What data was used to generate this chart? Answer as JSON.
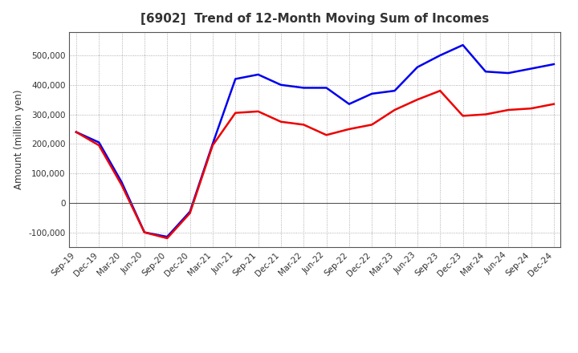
{
  "title": "[6902]  Trend of 12-Month Moving Sum of Incomes",
  "ylabel": "Amount (million yen)",
  "x_labels": [
    "Sep-19",
    "Dec-19",
    "Mar-20",
    "Jun-20",
    "Sep-20",
    "Dec-20",
    "Mar-21",
    "Jun-21",
    "Sep-21",
    "Dec-21",
    "Mar-22",
    "Jun-22",
    "Sep-22",
    "Dec-22",
    "Mar-23",
    "Jun-23",
    "Sep-23",
    "Dec-23",
    "Mar-24",
    "Jun-24",
    "Sep-24",
    "Dec-24"
  ],
  "ordinary_income": [
    240000,
    205000,
    70000,
    -100000,
    -115000,
    -30000,
    200000,
    420000,
    435000,
    400000,
    390000,
    390000,
    335000,
    370000,
    380000,
    460000,
    500000,
    535000,
    445000,
    440000,
    455000,
    470000
  ],
  "net_income": [
    240000,
    195000,
    60000,
    -100000,
    -120000,
    -35000,
    195000,
    305000,
    310000,
    275000,
    265000,
    230000,
    250000,
    265000,
    315000,
    350000,
    380000,
    295000,
    300000,
    315000,
    320000,
    335000
  ],
  "ordinary_color": "#0000ee",
  "net_color": "#ee0000",
  "ylim": [
    -150000,
    580000
  ],
  "yticks": [
    -100000,
    0,
    100000,
    200000,
    300000,
    400000,
    500000
  ],
  "background_color": "#ffffff",
  "grid_color": "#999999",
  "title_fontsize": 11,
  "title_color": "#333333",
  "line_width": 1.8,
  "tick_fontsize": 7.5,
  "ylabel_fontsize": 8.5
}
